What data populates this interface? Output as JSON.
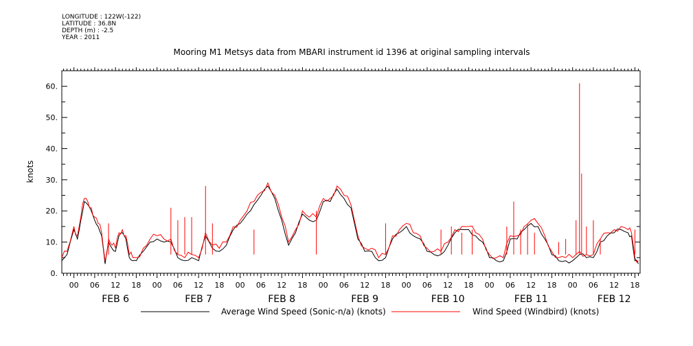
{
  "meta": {
    "longitude": "LONGITUDE : 122W(-122)",
    "latitude": "LATITUDE : 36.8N",
    "depth": "DEPTH (m) : -2.5",
    "year": "YEAR : 2011"
  },
  "chart_data": {
    "type": "line",
    "title": "Mooring M1 Metsys data from MBARI instrument id 1396 at original sampling intervals",
    "ylabel": "knots",
    "xlabel": "",
    "ylim": [
      0,
      65
    ],
    "xlim_hours": [
      -3.5,
      163.5
    ],
    "y_ticks": [
      0,
      10,
      20,
      30,
      40,
      50,
      60
    ],
    "y_tick_labels": [
      "0.",
      "10.",
      "20.",
      "30.",
      "40.",
      "50.",
      "60."
    ],
    "hour_tick_labels": [
      "00",
      "06",
      "12",
      "18",
      "00",
      "06",
      "12",
      "18",
      "00",
      "06",
      "12",
      "18",
      "00",
      "06",
      "12",
      "18",
      "00",
      "06",
      "12",
      "18",
      "00",
      "06",
      "12",
      "18",
      "00",
      "06",
      "12",
      "18"
    ],
    "day_labels": [
      "FEB  6",
      "FEB  7",
      "FEB  8",
      "FEB  9",
      "FEB 10",
      "FEB 11",
      "FEB 12"
    ],
    "grid": false,
    "legend_position": "bottom",
    "series": [
      {
        "name": "Average Wind Speed (Sonic-n/a) (knots)",
        "color": "#000000",
        "x_hours": [
          -3.5,
          -2,
          0,
          1,
          2,
          3,
          4,
          5,
          6,
          7,
          8,
          9,
          10,
          11,
          12,
          13,
          14,
          15,
          16,
          17,
          18,
          20,
          22,
          24,
          26,
          28,
          30,
          32,
          34,
          36,
          38,
          40,
          42,
          44,
          46,
          48,
          50,
          52,
          54,
          56,
          58,
          60,
          62,
          64,
          66,
          68,
          70,
          72,
          74,
          76,
          78,
          80,
          82,
          84,
          86,
          88,
          90,
          92,
          94,
          96,
          98,
          100,
          102,
          104,
          106,
          108,
          110,
          112,
          114,
          116,
          118,
          120,
          122,
          124,
          126,
          128,
          130,
          132,
          134,
          136,
          138,
          140,
          142,
          144,
          146,
          148,
          150,
          152,
          154,
          156,
          158,
          160,
          161,
          162,
          163
        ],
        "values": [
          4,
          6,
          14,
          11,
          17,
          23,
          22,
          20,
          17,
          15,
          12,
          3,
          10,
          8,
          7,
          12,
          13,
          11,
          5,
          4,
          4,
          7,
          10,
          11,
          10,
          10,
          5,
          4,
          5,
          4,
          12,
          8,
          7,
          9,
          14,
          16,
          19,
          22,
          25,
          28,
          24,
          17,
          9,
          13,
          19,
          17,
          17,
          23,
          23,
          27,
          24,
          21,
          11,
          7,
          7,
          4,
          5,
          11,
          13,
          15,
          12,
          11,
          7,
          6,
          6,
          9,
          13,
          14,
          14,
          12,
          10,
          5,
          4,
          4,
          11,
          11,
          14,
          16,
          15,
          11,
          6,
          4,
          4,
          4,
          6,
          5,
          5,
          10,
          12,
          13,
          14,
          13,
          12,
          4,
          3
        ]
      },
      {
        "name": "Wind Speed (Windbird) (knots)",
        "color": "#ff0000",
        "x_hours": [
          -3.5,
          -2,
          0,
          1,
          2,
          3,
          4,
          5,
          6,
          7,
          8,
          9,
          10,
          11,
          12,
          13,
          14,
          15,
          16,
          17,
          18,
          20,
          22,
          24,
          26,
          28,
          30,
          32,
          34,
          36,
          38,
          40,
          42,
          44,
          46,
          48,
          50,
          52,
          54,
          56,
          58,
          60,
          62,
          64,
          66,
          68,
          70,
          72,
          74,
          76,
          78,
          80,
          82,
          84,
          86,
          88,
          90,
          92,
          94,
          96,
          98,
          100,
          102,
          104,
          106,
          108,
          110,
          112,
          114,
          116,
          118,
          120,
          122,
          124,
          126,
          128,
          130,
          132,
          134,
          136,
          138,
          140,
          142,
          144,
          146,
          148,
          150,
          152,
          154,
          156,
          158,
          160,
          161,
          162,
          163
        ],
        "values": [
          5,
          7,
          15,
          12,
          18,
          24,
          23,
          21,
          18,
          16,
          13,
          4,
          11,
          9,
          8,
          13,
          14,
          12,
          6,
          5,
          5,
          8,
          11,
          12,
          11,
          11,
          6,
          5,
          6,
          5,
          13,
          9,
          8,
          10,
          15,
          17,
          20,
          23,
          26,
          29,
          25,
          18,
          10,
          14,
          20,
          18,
          18,
          24,
          24,
          28,
          25,
          22,
          12,
          8,
          8,
          5,
          6,
          12,
          14,
          16,
          13,
          12,
          8,
          7,
          7,
          10,
          14,
          15,
          15,
          13,
          11,
          6,
          5,
          5,
          12,
          12,
          15,
          17,
          16,
          12,
          7,
          5,
          5,
          5,
          7,
          6,
          6,
          11,
          13,
          14,
          15,
          14,
          13,
          5,
          4
        ]
      }
    ],
    "spikes": {
      "series": "Wind Speed (Windbird) (knots)",
      "x_hours": [
        10,
        28,
        30,
        32,
        34,
        38,
        40,
        52,
        70,
        90,
        106,
        109,
        112,
        115,
        125,
        127,
        129,
        131,
        133,
        140,
        142,
        145,
        146,
        146.6,
        148,
        150,
        152,
        162
      ],
      "values": [
        16,
        21,
        17,
        18,
        18,
        28,
        16,
        14,
        20,
        16,
        14,
        15,
        13,
        14,
        15,
        23,
        14,
        16,
        13,
        10,
        11,
        17,
        61,
        32,
        15,
        17,
        11,
        14
      ]
    }
  }
}
